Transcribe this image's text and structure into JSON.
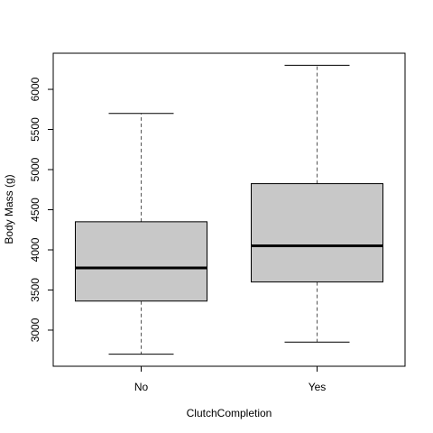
{
  "chart_data": {
    "type": "boxplot",
    "title": "",
    "xlabel": "ClutchCompletion",
    "ylabel": "Body Mass (g)",
    "ylim": [
      2550,
      6450
    ],
    "yticks": [
      3000,
      3500,
      4000,
      4500,
      5000,
      5500,
      6000
    ],
    "ytick_labels": [
      "3000",
      "3500",
      "4000",
      "4500",
      "5000",
      "5500",
      "6000"
    ],
    "categories": [
      "No",
      "Yes"
    ],
    "boxes": [
      {
        "category": "No",
        "whisker_low": 2700,
        "q1": 3362,
        "median": 3775,
        "q3": 4350,
        "whisker_high": 5700
      },
      {
        "category": "Yes",
        "whisker_low": 2850,
        "q1": 3600,
        "median": 4050,
        "q3": 4825,
        "whisker_high": 6300
      }
    ],
    "box_fill": "#c8c8c8",
    "grid": false,
    "legend": "none"
  }
}
